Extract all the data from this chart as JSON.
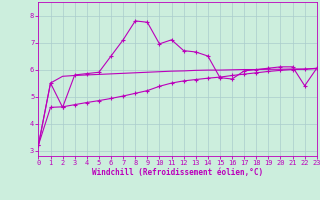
{
  "xlabel": "Windchill (Refroidissement éolien,°C)",
  "background_color": "#cceedd",
  "grid_color": "#aacccc",
  "line_color": "#bb00bb",
  "x_ticks": [
    0,
    1,
    2,
    3,
    4,
    5,
    6,
    7,
    8,
    9,
    10,
    11,
    12,
    13,
    14,
    15,
    16,
    17,
    18,
    19,
    20,
    21,
    22,
    23
  ],
  "y_ticks": [
    3,
    4,
    5,
    6,
    7,
    8
  ],
  "xlim": [
    0,
    23
  ],
  "ylim": [
    2.8,
    8.5
  ],
  "line1_x": [
    0,
    1,
    2,
    3,
    4,
    5,
    6,
    7,
    8,
    9,
    10,
    11,
    12,
    13,
    14,
    15,
    16,
    17,
    18,
    19,
    20,
    21,
    22,
    23
  ],
  "line1_y": [
    3.2,
    5.5,
    4.6,
    5.8,
    5.85,
    5.9,
    6.5,
    7.1,
    7.8,
    7.75,
    6.95,
    7.1,
    6.7,
    6.65,
    6.5,
    5.7,
    5.65,
    5.95,
    6.0,
    6.05,
    6.1,
    6.1,
    5.4,
    6.05
  ],
  "line2_x": [
    0,
    1,
    2,
    3,
    4,
    5,
    6,
    7,
    8,
    9,
    10,
    11,
    12,
    13,
    14,
    15,
    16,
    17,
    18,
    19,
    20,
    21,
    22,
    23
  ],
  "line2_y": [
    3.2,
    5.5,
    5.75,
    5.78,
    5.8,
    5.82,
    5.84,
    5.86,
    5.88,
    5.9,
    5.92,
    5.94,
    5.95,
    5.97,
    5.98,
    5.98,
    5.99,
    6.0,
    6.0,
    6.01,
    6.01,
    6.02,
    6.02,
    6.03
  ],
  "line3_x": [
    0,
    1,
    2,
    3,
    4,
    5,
    6,
    7,
    8,
    9,
    10,
    11,
    12,
    13,
    14,
    15,
    16,
    17,
    18,
    19,
    20,
    21,
    22,
    23
  ],
  "line3_y": [
    3.2,
    4.6,
    4.62,
    4.7,
    4.78,
    4.85,
    4.93,
    5.02,
    5.12,
    5.22,
    5.38,
    5.5,
    5.58,
    5.63,
    5.68,
    5.72,
    5.78,
    5.83,
    5.88,
    5.93,
    5.97,
    6.0,
    6.01,
    6.05
  ],
  "figwidth": 3.2,
  "figheight": 2.0,
  "dpi": 100
}
